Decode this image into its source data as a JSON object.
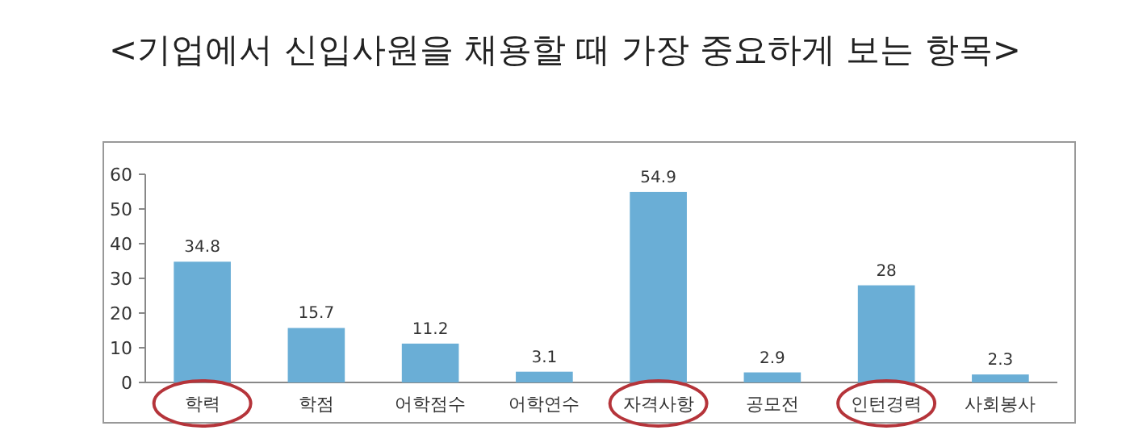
{
  "chart_data": {
    "type": "bar",
    "title": "<기업에서 신입사원을 채용할 때 가장 중요하게 보는 항목>",
    "categories": [
      "학력",
      "학점",
      "어학점수",
      "어학연수",
      "자격사항",
      "공모전",
      "인턴경력",
      "사회봉사"
    ],
    "values": [
      34.8,
      15.7,
      11.2,
      3.1,
      54.9,
      2.9,
      28,
      2.3
    ],
    "color": "#6aaed6",
    "ylim": [
      0,
      60
    ],
    "yticks": [
      0,
      10,
      20,
      30,
      40,
      50,
      60
    ],
    "data_labels": true
  }
}
